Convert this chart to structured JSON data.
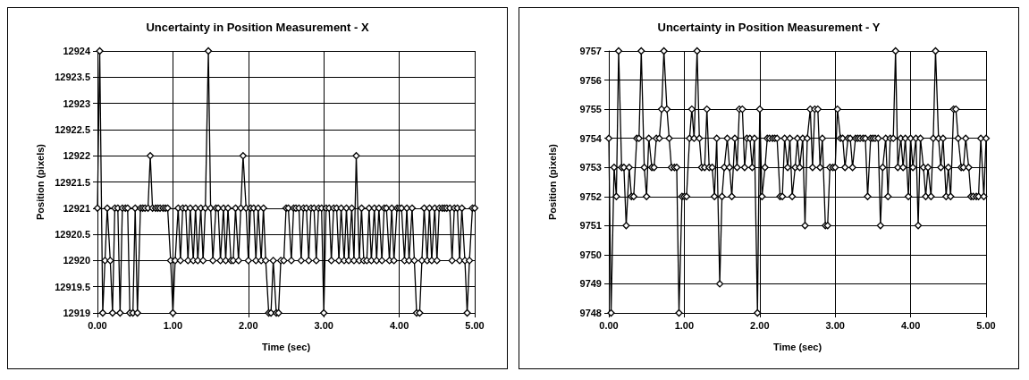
{
  "chart_data": [
    {
      "type": "line",
      "title": "Uncertainty in Position Measurement - X",
      "xlabel": "Time (sec)",
      "ylabel": "Position (pixels)",
      "marker": "diamond",
      "line_style": "solid",
      "grid": true,
      "xlim": [
        0,
        5
      ],
      "xticks": [
        {
          "value": 0,
          "label": "0.00"
        },
        {
          "value": 1,
          "label": "1.00"
        },
        {
          "value": 2,
          "label": "2.00"
        },
        {
          "value": 3,
          "label": "3.00"
        },
        {
          "value": 4,
          "label": "4.00"
        },
        {
          "value": 5,
          "label": "5.00"
        }
      ],
      "ylim": [
        12919,
        12924
      ],
      "yticks": [
        12919,
        12919.5,
        12920,
        12920.5,
        12921,
        12921.5,
        12922,
        12922.5,
        12923,
        12923.5,
        12924
      ],
      "series": [
        {
          "color": "#000000",
          "x": [
            0,
            0.03,
            0.07,
            0.1,
            0.13,
            0.17,
            0.2,
            0.23,
            0.27,
            0.3,
            0.33,
            0.37,
            0.4,
            0.43,
            0.47,
            0.5,
            0.53,
            0.57,
            0.6,
            0.63,
            0.67,
            0.7,
            0.73,
            0.77,
            0.8,
            0.83,
            0.87,
            0.9,
            0.93,
            0.97,
            1,
            1.03,
            1.07,
            1.1,
            1.13,
            1.17,
            1.2,
            1.23,
            1.27,
            1.3,
            1.33,
            1.37,
            1.4,
            1.43,
            1.47,
            1.5,
            1.53,
            1.57,
            1.6,
            1.63,
            1.67,
            1.7,
            1.73,
            1.77,
            1.8,
            1.83,
            1.87,
            1.9,
            1.93,
            1.97,
            2,
            2.03,
            2.07,
            2.1,
            2.13,
            2.17,
            2.2,
            2.23,
            2.27,
            2.3,
            2.33,
            2.37,
            2.4,
            2.43,
            2.47,
            2.5,
            2.53,
            2.57,
            2.6,
            2.63,
            2.67,
            2.7,
            2.73,
            2.77,
            2.8,
            2.83,
            2.87,
            2.9,
            2.93,
            2.97,
            3,
            3.03,
            3.07,
            3.1,
            3.13,
            3.17,
            3.2,
            3.23,
            3.27,
            3.3,
            3.33,
            3.37,
            3.4,
            3.43,
            3.47,
            3.5,
            3.53,
            3.57,
            3.6,
            3.63,
            3.67,
            3.7,
            3.73,
            3.77,
            3.8,
            3.83,
            3.87,
            3.9,
            3.93,
            3.97,
            4,
            4.03,
            4.07,
            4.1,
            4.13,
            4.17,
            4.2,
            4.23,
            4.27,
            4.3,
            4.33,
            4.37,
            4.4,
            4.43,
            4.47,
            4.5,
            4.53,
            4.57,
            4.6,
            4.63,
            4.67,
            4.7,
            4.73,
            4.77,
            4.8,
            4.83,
            4.87,
            4.9,
            4.93,
            4.97,
            5
          ],
          "values": [
            12921,
            12924,
            12919,
            12920,
            12921,
            12920,
            12919,
            12921,
            12921,
            12919,
            12921,
            12921,
            12921,
            12919,
            12919,
            12921,
            12919,
            12921,
            12921,
            12921,
            12921,
            12922,
            12921,
            12921,
            12921,
            12921,
            12921,
            12921,
            12921,
            12920,
            12919,
            12920,
            12921,
            12920,
            12921,
            12921,
            12920,
            12921,
            12920,
            12921,
            12920,
            12921,
            12920,
            12921,
            12924,
            12921,
            12920,
            12921,
            12921,
            12920,
            12921,
            12920,
            12921,
            12920,
            12920,
            12921,
            12920,
            12921,
            12922,
            12921,
            12920,
            12921,
            12921,
            12920,
            12921,
            12920,
            12921,
            12920,
            12919,
            12919,
            12920,
            12919,
            12919,
            12920,
            12920,
            12921,
            12921,
            12920,
            12921,
            12921,
            12921,
            12920,
            12921,
            12921,
            12920,
            12921,
            12921,
            12920,
            12921,
            12921,
            12919,
            12921,
            12921,
            12920,
            12921,
            12921,
            12920,
            12921,
            12920,
            12921,
            12920,
            12921,
            12920,
            12922,
            12920,
            12921,
            12920,
            12920,
            12921,
            12920,
            12921,
            12920,
            12921,
            12920,
            12921,
            12921,
            12920,
            12921,
            12920,
            12921,
            12921,
            12921,
            12920,
            12921,
            12920,
            12921,
            12920,
            12919,
            12919,
            12920,
            12921,
            12920,
            12921,
            12920,
            12921,
            12920,
            12921,
            12921,
            12921,
            12921,
            12921,
            12920,
            12921,
            12921,
            12920,
            12921,
            12920,
            12919,
            12920,
            12921,
            12921
          ]
        }
      ]
    },
    {
      "type": "line",
      "title": "Uncertainty in Position Measurement - Y",
      "xlabel": "Time (sec)",
      "ylabel": "Position (pixels)",
      "marker": "diamond",
      "line_style": "solid",
      "grid": true,
      "xlim": [
        0,
        5
      ],
      "xticks": [
        {
          "value": 0,
          "label": "0.00"
        },
        {
          "value": 1,
          "label": "1.00"
        },
        {
          "value": 2,
          "label": "2.00"
        },
        {
          "value": 3,
          "label": "3.00"
        },
        {
          "value": 4,
          "label": "4.00"
        },
        {
          "value": 5,
          "label": "5.00"
        }
      ],
      "ylim": [
        9748,
        9757
      ],
      "yticks": [
        9748,
        9749,
        9750,
        9751,
        9752,
        9753,
        9754,
        9755,
        9756,
        9757
      ],
      "series": [
        {
          "color": "#000000",
          "x": [
            0,
            0.03,
            0.07,
            0.1,
            0.13,
            0.17,
            0.2,
            0.23,
            0.27,
            0.3,
            0.33,
            0.37,
            0.4,
            0.43,
            0.47,
            0.5,
            0.53,
            0.57,
            0.6,
            0.63,
            0.67,
            0.7,
            0.73,
            0.77,
            0.8,
            0.83,
            0.87,
            0.9,
            0.93,
            0.97,
            1,
            1.03,
            1.07,
            1.1,
            1.13,
            1.17,
            1.2,
            1.23,
            1.27,
            1.3,
            1.33,
            1.37,
            1.4,
            1.43,
            1.47,
            1.5,
            1.53,
            1.57,
            1.6,
            1.63,
            1.67,
            1.7,
            1.73,
            1.77,
            1.8,
            1.83,
            1.87,
            1.9,
            1.93,
            1.97,
            2,
            2.03,
            2.07,
            2.1,
            2.13,
            2.17,
            2.2,
            2.23,
            2.27,
            2.3,
            2.33,
            2.37,
            2.4,
            2.43,
            2.47,
            2.5,
            2.53,
            2.57,
            2.6,
            2.63,
            2.67,
            2.7,
            2.73,
            2.77,
            2.8,
            2.83,
            2.87,
            2.9,
            2.93,
            2.97,
            3,
            3.03,
            3.07,
            3.1,
            3.13,
            3.17,
            3.2,
            3.23,
            3.27,
            3.3,
            3.33,
            3.37,
            3.4,
            3.43,
            3.47,
            3.5,
            3.53,
            3.57,
            3.6,
            3.63,
            3.67,
            3.7,
            3.73,
            3.77,
            3.8,
            3.83,
            3.87,
            3.9,
            3.93,
            3.97,
            4,
            4.03,
            4.07,
            4.1,
            4.13,
            4.17,
            4.2,
            4.23,
            4.27,
            4.3,
            4.33,
            4.37,
            4.4,
            4.43,
            4.47,
            4.5,
            4.53,
            4.57,
            4.6,
            4.63,
            4.67,
            4.7,
            4.73,
            4.77,
            4.8,
            4.83,
            4.87,
            4.9,
            4.93,
            4.97,
            5
          ],
          "values": [
            9754,
            9748,
            9753,
            9752,
            9757,
            9753,
            9753,
            9751,
            9753,
            9752,
            9752,
            9754,
            9754,
            9757,
            9753,
            9752,
            9754,
            9753,
            9753,
            9754,
            9754,
            9755,
            9757,
            9755,
            9754,
            9753,
            9753,
            9753,
            9748,
            9752,
            9752,
            9752,
            9754,
            9755,
            9754,
            9757,
            9754,
            9753,
            9753,
            9755,
            9753,
            9753,
            9752,
            9754,
            9749,
            9752,
            9753,
            9754,
            9753,
            9752,
            9754,
            9753,
            9755,
            9755,
            9753,
            9754,
            9754,
            9753,
            9754,
            9748,
            9755,
            9752,
            9753,
            9754,
            9754,
            9754,
            9754,
            9754,
            9752,
            9752,
            9754,
            9753,
            9754,
            9752,
            9753,
            9754,
            9753,
            9754,
            9751,
            9754,
            9755,
            9753,
            9755,
            9755,
            9753,
            9754,
            9751,
            9751,
            9753,
            9753,
            9753,
            9755,
            9754,
            9754,
            9753,
            9754,
            9754,
            9753,
            9754,
            9754,
            9754,
            9754,
            9754,
            9752,
            9754,
            9754,
            9754,
            9754,
            9751,
            9753,
            9754,
            9752,
            9754,
            9754,
            9757,
            9753,
            9754,
            9753,
            9754,
            9752,
            9754,
            9753,
            9754,
            9751,
            9754,
            9753,
            9752,
            9753,
            9752,
            9754,
            9757,
            9754,
            9753,
            9754,
            9752,
            9753,
            9752,
            9755,
            9755,
            9754,
            9753,
            9753,
            9754,
            9753,
            9752,
            9752,
            9752,
            9752,
            9754,
            9752,
            9754
          ]
        }
      ]
    }
  ]
}
